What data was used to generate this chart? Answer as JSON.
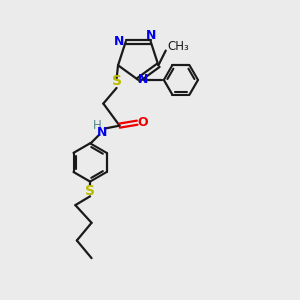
{
  "bg_color": "#ebebeb",
  "bond_color": "#1a1a1a",
  "N_color": "#0000ee",
  "O_color": "#ee0000",
  "S_color": "#bbbb00",
  "H_color": "#558888",
  "fig_width": 3.0,
  "fig_height": 3.0,
  "dpi": 100,
  "xlim": [
    0,
    10
  ],
  "ylim": [
    0,
    10
  ]
}
